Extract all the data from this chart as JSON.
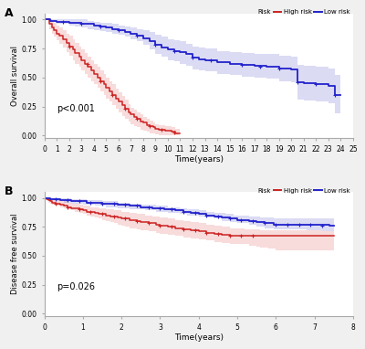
{
  "panel_A": {
    "title_label": "A",
    "pvalue": "p<0.001",
    "ylabel": "Overall survival",
    "xlabel": "Time(years)",
    "xlim": [
      0,
      25
    ],
    "ylim": [
      -0.02,
      1.05
    ],
    "xticks": [
      0,
      1,
      2,
      3,
      4,
      5,
      6,
      7,
      8,
      9,
      10,
      11,
      12,
      13,
      14,
      15,
      16,
      17,
      18,
      19,
      20,
      21,
      22,
      23,
      24,
      25
    ],
    "high_risk_color": "#CC2222",
    "high_risk_fill": "#E88888",
    "low_risk_color": "#2222CC",
    "low_risk_fill": "#8888DD",
    "high_risk_x": [
      0,
      0.4,
      0.6,
      0.8,
      1.0,
      1.2,
      1.5,
      1.8,
      2.0,
      2.3,
      2.5,
      2.8,
      3.0,
      3.3,
      3.5,
      3.8,
      4.0,
      4.3,
      4.5,
      4.8,
      5.0,
      5.3,
      5.5,
      5.8,
      6.0,
      6.3,
      6.5,
      6.8,
      7.0,
      7.3,
      7.5,
      7.8,
      8.0,
      8.3,
      8.5,
      8.8,
      9.0,
      9.3,
      9.5,
      9.8,
      10.0,
      10.3,
      10.6,
      11.0
    ],
    "high_risk_y": [
      1.0,
      0.96,
      0.93,
      0.91,
      0.88,
      0.86,
      0.83,
      0.8,
      0.77,
      0.74,
      0.71,
      0.68,
      0.65,
      0.62,
      0.59,
      0.56,
      0.53,
      0.5,
      0.47,
      0.44,
      0.41,
      0.38,
      0.35,
      0.32,
      0.29,
      0.26,
      0.23,
      0.2,
      0.18,
      0.16,
      0.14,
      0.12,
      0.11,
      0.09,
      0.08,
      0.07,
      0.06,
      0.05,
      0.05,
      0.04,
      0.04,
      0.03,
      0.02,
      0.02
    ],
    "high_risk_upper": [
      1.0,
      1.0,
      0.98,
      0.97,
      0.95,
      0.93,
      0.91,
      0.88,
      0.86,
      0.83,
      0.8,
      0.77,
      0.74,
      0.71,
      0.68,
      0.65,
      0.62,
      0.59,
      0.56,
      0.53,
      0.5,
      0.47,
      0.44,
      0.4,
      0.37,
      0.34,
      0.31,
      0.27,
      0.24,
      0.22,
      0.2,
      0.18,
      0.16,
      0.14,
      0.13,
      0.11,
      0.1,
      0.09,
      0.09,
      0.08,
      0.08,
      0.07,
      0.06,
      0.08
    ],
    "high_risk_lower": [
      1.0,
      0.92,
      0.88,
      0.85,
      0.82,
      0.79,
      0.76,
      0.72,
      0.69,
      0.65,
      0.62,
      0.59,
      0.56,
      0.53,
      0.5,
      0.47,
      0.44,
      0.41,
      0.38,
      0.35,
      0.32,
      0.29,
      0.26,
      0.23,
      0.2,
      0.17,
      0.14,
      0.12,
      0.1,
      0.08,
      0.07,
      0.05,
      0.04,
      0.03,
      0.02,
      0.02,
      0.01,
      0.0,
      0.0,
      0.0,
      0.0,
      0.0,
      0.0,
      0.0
    ],
    "low_risk_x": [
      0,
      0.5,
      1.0,
      1.5,
      2.0,
      2.5,
      3.0,
      3.5,
      4.0,
      4.5,
      5.0,
      5.5,
      6.0,
      6.5,
      7.0,
      7.5,
      8.0,
      8.5,
      9.0,
      9.5,
      10.0,
      10.5,
      11.0,
      11.5,
      12.0,
      12.5,
      13.0,
      14.0,
      15.0,
      16.0,
      17.0,
      18.0,
      19.0,
      20.0,
      20.5,
      21.0,
      22.0,
      23.0,
      23.5,
      24.0
    ],
    "low_risk_y": [
      1.0,
      0.99,
      0.98,
      0.98,
      0.97,
      0.97,
      0.96,
      0.96,
      0.95,
      0.94,
      0.93,
      0.92,
      0.91,
      0.89,
      0.88,
      0.86,
      0.84,
      0.81,
      0.78,
      0.76,
      0.74,
      0.73,
      0.72,
      0.7,
      0.67,
      0.66,
      0.65,
      0.63,
      0.62,
      0.61,
      0.6,
      0.59,
      0.58,
      0.57,
      0.46,
      0.45,
      0.44,
      0.43,
      0.35,
      0.35
    ],
    "low_risk_upper": [
      1.0,
      1.0,
      1.0,
      1.0,
      1.0,
      1.0,
      1.0,
      0.99,
      0.98,
      0.97,
      0.97,
      0.96,
      0.95,
      0.94,
      0.93,
      0.92,
      0.91,
      0.89,
      0.87,
      0.85,
      0.83,
      0.82,
      0.81,
      0.79,
      0.77,
      0.76,
      0.75,
      0.73,
      0.72,
      0.71,
      0.7,
      0.7,
      0.69,
      0.68,
      0.61,
      0.6,
      0.59,
      0.58,
      0.52,
      0.52
    ],
    "low_risk_lower": [
      1.0,
      0.98,
      0.96,
      0.96,
      0.95,
      0.94,
      0.93,
      0.92,
      0.91,
      0.9,
      0.89,
      0.88,
      0.87,
      0.85,
      0.83,
      0.81,
      0.78,
      0.74,
      0.7,
      0.68,
      0.65,
      0.64,
      0.62,
      0.6,
      0.57,
      0.56,
      0.55,
      0.53,
      0.52,
      0.51,
      0.5,
      0.49,
      0.47,
      0.46,
      0.31,
      0.3,
      0.29,
      0.28,
      0.19,
      0.19
    ],
    "hr_censor_x": [
      2.0,
      3.5,
      4.5,
      5.5,
      6.5,
      7.5,
      8.5,
      9.5,
      10.5
    ],
    "hr_censor_y": [
      0.77,
      0.62,
      0.47,
      0.35,
      0.23,
      0.14,
      0.08,
      0.05,
      0.025
    ],
    "lr_censor_x": [
      1.5,
      3.0,
      4.5,
      6.0,
      7.5,
      9.0,
      10.5,
      12.0,
      13.5,
      16.0,
      17.5,
      19.0,
      20.5,
      22.0,
      23.5
    ],
    "lr_censor_y": [
      0.98,
      0.96,
      0.94,
      0.91,
      0.86,
      0.78,
      0.73,
      0.67,
      0.65,
      0.61,
      0.595,
      0.58,
      0.46,
      0.44,
      0.35
    ]
  },
  "panel_B": {
    "title_label": "B",
    "pvalue": "p=0.026",
    "ylabel": "Disease free survival",
    "xlabel": "Time(years)",
    "xlim": [
      0,
      8
    ],
    "ylim": [
      -0.02,
      1.05
    ],
    "xticks": [
      0,
      1,
      2,
      3,
      4,
      5,
      6,
      7,
      8
    ],
    "high_risk_color": "#CC2222",
    "high_risk_fill": "#E88888",
    "low_risk_color": "#2222CC",
    "low_risk_fill": "#8888DD",
    "high_risk_x": [
      0,
      0.05,
      0.1,
      0.15,
      0.2,
      0.3,
      0.4,
      0.5,
      0.6,
      0.7,
      0.8,
      0.9,
      1.0,
      1.1,
      1.2,
      1.3,
      1.4,
      1.5,
      1.6,
      1.7,
      1.8,
      1.9,
      2.0,
      2.1,
      2.2,
      2.3,
      2.4,
      2.5,
      2.6,
      2.7,
      2.8,
      2.9,
      3.0,
      3.1,
      3.2,
      3.3,
      3.4,
      3.5,
      3.6,
      3.7,
      3.8,
      3.9,
      4.0,
      4.1,
      4.2,
      4.3,
      4.4,
      4.5,
      4.6,
      4.7,
      4.8,
      4.9,
      5.0,
      5.1,
      5.2,
      5.3,
      5.4,
      5.5,
      5.6,
      5.7,
      5.8,
      5.9,
      6.0,
      6.2,
      6.4,
      6.6,
      6.8,
      7.0,
      7.2,
      7.4,
      7.5
    ],
    "high_risk_y": [
      1.0,
      0.99,
      0.98,
      0.97,
      0.96,
      0.95,
      0.94,
      0.93,
      0.92,
      0.91,
      0.91,
      0.9,
      0.89,
      0.88,
      0.88,
      0.87,
      0.86,
      0.86,
      0.85,
      0.84,
      0.84,
      0.83,
      0.82,
      0.82,
      0.81,
      0.81,
      0.8,
      0.79,
      0.79,
      0.78,
      0.78,
      0.77,
      0.76,
      0.76,
      0.75,
      0.75,
      0.74,
      0.74,
      0.73,
      0.73,
      0.72,
      0.72,
      0.71,
      0.71,
      0.7,
      0.7,
      0.69,
      0.69,
      0.68,
      0.68,
      0.67,
      0.67,
      0.67,
      0.67,
      0.67,
      0.67,
      0.67,
      0.67,
      0.67,
      0.67,
      0.67,
      0.67,
      0.67,
      0.67,
      0.67,
      0.67,
      0.67,
      0.67,
      0.67,
      0.67,
      0.67
    ],
    "high_risk_upper": [
      1.0,
      1.0,
      1.0,
      0.99,
      0.99,
      0.98,
      0.97,
      0.97,
      0.96,
      0.95,
      0.95,
      0.94,
      0.93,
      0.93,
      0.92,
      0.92,
      0.91,
      0.91,
      0.9,
      0.9,
      0.89,
      0.89,
      0.88,
      0.88,
      0.87,
      0.87,
      0.86,
      0.86,
      0.85,
      0.85,
      0.84,
      0.84,
      0.83,
      0.83,
      0.82,
      0.82,
      0.81,
      0.81,
      0.8,
      0.8,
      0.79,
      0.79,
      0.78,
      0.78,
      0.77,
      0.77,
      0.76,
      0.76,
      0.75,
      0.75,
      0.74,
      0.74,
      0.74,
      0.74,
      0.73,
      0.73,
      0.73,
      0.73,
      0.72,
      0.72,
      0.72,
      0.72,
      0.72,
      0.72,
      0.72,
      0.72,
      0.72,
      0.72,
      0.71,
      0.71,
      0.71
    ],
    "high_risk_lower": [
      1.0,
      0.98,
      0.96,
      0.95,
      0.94,
      0.93,
      0.92,
      0.91,
      0.9,
      0.89,
      0.88,
      0.87,
      0.86,
      0.85,
      0.84,
      0.83,
      0.82,
      0.81,
      0.8,
      0.79,
      0.78,
      0.77,
      0.76,
      0.75,
      0.74,
      0.74,
      0.73,
      0.72,
      0.72,
      0.71,
      0.71,
      0.7,
      0.69,
      0.69,
      0.68,
      0.68,
      0.67,
      0.67,
      0.66,
      0.66,
      0.65,
      0.65,
      0.64,
      0.64,
      0.63,
      0.63,
      0.62,
      0.62,
      0.61,
      0.61,
      0.6,
      0.6,
      0.6,
      0.6,
      0.6,
      0.59,
      0.59,
      0.58,
      0.57,
      0.57,
      0.56,
      0.56,
      0.55,
      0.55,
      0.55,
      0.55,
      0.55,
      0.55,
      0.55,
      0.55,
      0.55
    ],
    "low_risk_x": [
      0,
      0.05,
      0.1,
      0.15,
      0.2,
      0.3,
      0.4,
      0.5,
      0.6,
      0.7,
      0.8,
      0.9,
      1.0,
      1.1,
      1.2,
      1.3,
      1.4,
      1.5,
      1.6,
      1.7,
      1.8,
      1.9,
      2.0,
      2.1,
      2.2,
      2.3,
      2.4,
      2.5,
      2.6,
      2.7,
      2.8,
      2.9,
      3.0,
      3.1,
      3.2,
      3.3,
      3.4,
      3.5,
      3.6,
      3.7,
      3.8,
      3.9,
      4.0,
      4.1,
      4.2,
      4.3,
      4.4,
      4.5,
      4.6,
      4.7,
      4.8,
      4.9,
      5.0,
      5.1,
      5.2,
      5.3,
      5.4,
      5.5,
      5.6,
      5.7,
      5.8,
      5.9,
      5.95,
      6.0,
      6.2,
      6.4,
      6.6,
      6.8,
      7.0,
      7.2,
      7.4,
      7.5
    ],
    "low_risk_y": [
      1.0,
      1.0,
      1.0,
      0.99,
      0.99,
      0.99,
      0.98,
      0.98,
      0.98,
      0.97,
      0.97,
      0.97,
      0.97,
      0.96,
      0.96,
      0.96,
      0.96,
      0.95,
      0.95,
      0.95,
      0.95,
      0.94,
      0.94,
      0.94,
      0.93,
      0.93,
      0.93,
      0.92,
      0.92,
      0.92,
      0.91,
      0.91,
      0.91,
      0.9,
      0.9,
      0.9,
      0.89,
      0.89,
      0.88,
      0.88,
      0.87,
      0.87,
      0.86,
      0.86,
      0.85,
      0.85,
      0.84,
      0.84,
      0.83,
      0.83,
      0.82,
      0.82,
      0.81,
      0.81,
      0.81,
      0.8,
      0.8,
      0.79,
      0.79,
      0.78,
      0.78,
      0.78,
      0.77,
      0.77,
      0.77,
      0.77,
      0.77,
      0.77,
      0.77,
      0.77,
      0.76,
      0.76
    ],
    "low_risk_upper": [
      1.0,
      1.0,
      1.0,
      1.0,
      1.0,
      1.0,
      1.0,
      1.0,
      1.0,
      0.99,
      0.99,
      0.99,
      0.99,
      0.98,
      0.98,
      0.98,
      0.98,
      0.97,
      0.97,
      0.97,
      0.97,
      0.96,
      0.96,
      0.96,
      0.95,
      0.95,
      0.95,
      0.94,
      0.94,
      0.94,
      0.94,
      0.93,
      0.93,
      0.93,
      0.92,
      0.92,
      0.92,
      0.91,
      0.91,
      0.9,
      0.9,
      0.9,
      0.89,
      0.89,
      0.88,
      0.88,
      0.87,
      0.87,
      0.87,
      0.86,
      0.86,
      0.85,
      0.85,
      0.85,
      0.85,
      0.84,
      0.84,
      0.84,
      0.83,
      0.83,
      0.83,
      0.83,
      0.82,
      0.82,
      0.82,
      0.82,
      0.82,
      0.82,
      0.82,
      0.82,
      0.82,
      0.82
    ],
    "low_risk_lower": [
      1.0,
      0.99,
      0.99,
      0.98,
      0.98,
      0.97,
      0.97,
      0.96,
      0.96,
      0.95,
      0.95,
      0.95,
      0.94,
      0.94,
      0.94,
      0.93,
      0.93,
      0.93,
      0.92,
      0.92,
      0.92,
      0.91,
      0.91,
      0.91,
      0.9,
      0.9,
      0.9,
      0.9,
      0.89,
      0.89,
      0.89,
      0.88,
      0.88,
      0.88,
      0.87,
      0.87,
      0.87,
      0.86,
      0.86,
      0.85,
      0.85,
      0.85,
      0.84,
      0.84,
      0.83,
      0.83,
      0.82,
      0.82,
      0.8,
      0.8,
      0.79,
      0.79,
      0.78,
      0.78,
      0.78,
      0.77,
      0.77,
      0.75,
      0.75,
      0.74,
      0.74,
      0.74,
      0.73,
      0.73,
      0.73,
      0.73,
      0.73,
      0.72,
      0.72,
      0.71,
      0.71,
      0.71
    ],
    "hr_censor_x": [
      0.3,
      0.6,
      0.9,
      1.2,
      1.5,
      1.8,
      2.1,
      2.4,
      2.7,
      3.0,
      3.3,
      3.6,
      3.9,
      4.2,
      4.5,
      4.8,
      5.1,
      5.4
    ],
    "hr_censor_y": [
      0.95,
      0.92,
      0.9,
      0.88,
      0.86,
      0.84,
      0.82,
      0.8,
      0.78,
      0.76,
      0.75,
      0.73,
      0.72,
      0.7,
      0.69,
      0.67,
      0.67,
      0.67
    ],
    "lr_censor_x": [
      0.3,
      0.6,
      0.9,
      1.2,
      1.5,
      1.8,
      2.1,
      2.4,
      2.7,
      3.0,
      3.3,
      3.6,
      3.9,
      4.2,
      4.5,
      4.8,
      5.1,
      5.4,
      5.7,
      6.0,
      6.3,
      6.6,
      6.9,
      7.2
    ],
    "lr_censor_y": [
      0.99,
      0.98,
      0.97,
      0.96,
      0.95,
      0.95,
      0.94,
      0.93,
      0.92,
      0.91,
      0.9,
      0.88,
      0.87,
      0.85,
      0.84,
      0.82,
      0.81,
      0.8,
      0.78,
      0.77,
      0.77,
      0.77,
      0.77,
      0.76
    ]
  },
  "legend_label_risk": "Risk",
  "legend_label_high": "High risk",
  "legend_label_low": "Low risk",
  "bg_color": "#f0f0f0"
}
